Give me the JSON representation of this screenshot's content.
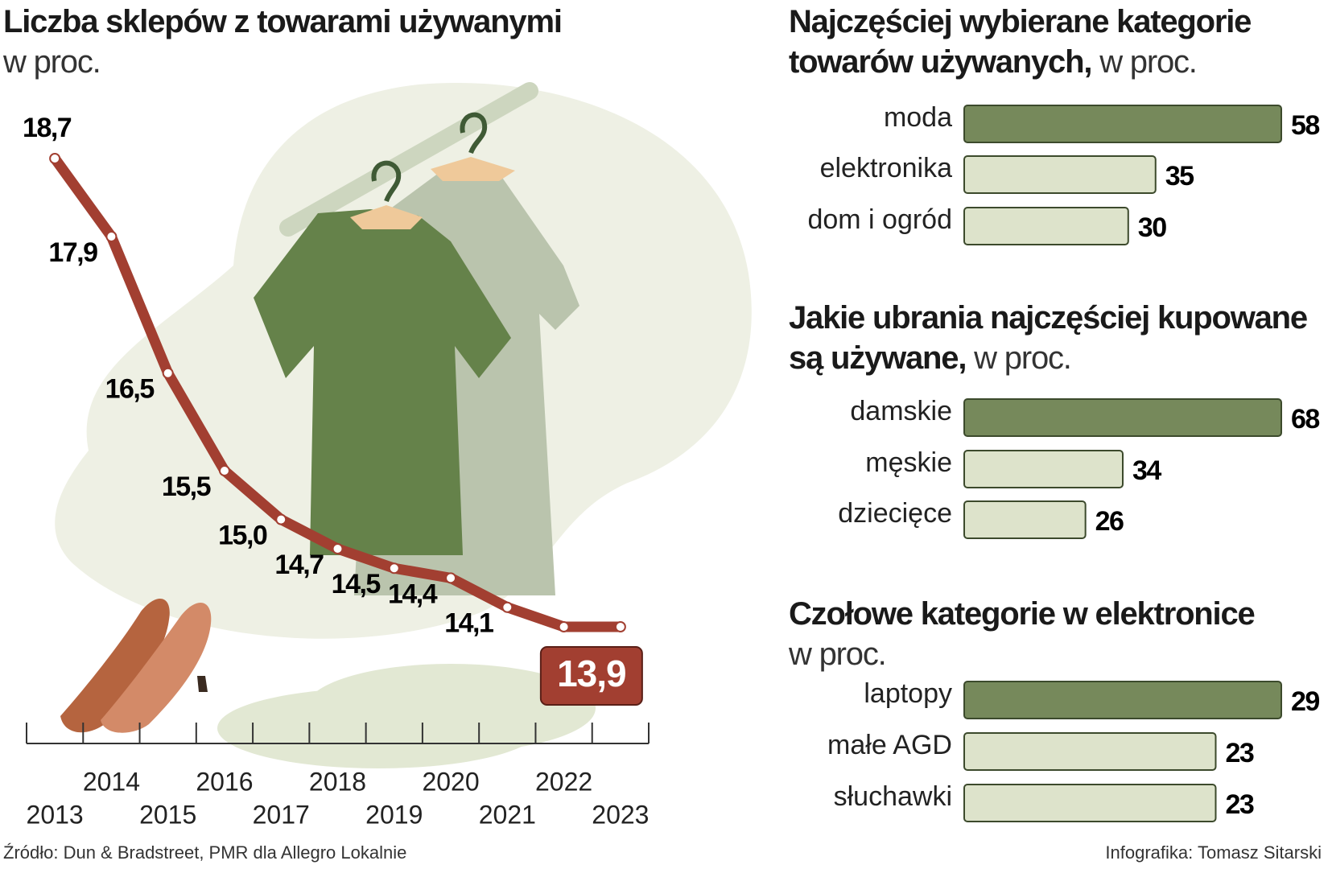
{
  "chart_data": [
    {
      "type": "line",
      "title": "Liczba sklepów z towarami używanymi",
      "subtitle": "w proc.",
      "x": [
        2013,
        2014,
        2015,
        2016,
        2017,
        2018,
        2019,
        2020,
        2021,
        2022,
        2023
      ],
      "values": [
        18.7,
        17.9,
        16.5,
        15.5,
        15.0,
        14.7,
        14.5,
        14.4,
        14.1,
        13.9,
        13.9
      ],
      "value_labels": [
        "18,7",
        "17,9",
        "16,5",
        "15,5",
        "15,0",
        "14,7",
        "14,5",
        "14,4",
        "14,1",
        null,
        "13,9"
      ],
      "xlim": [
        2012.5,
        2023.5
      ],
      "xticks": [
        2013,
        2014,
        2015,
        2016,
        2017,
        2018,
        2019,
        2020,
        2021,
        2022,
        2023
      ],
      "color": "#a23f31"
    },
    {
      "type": "hbar",
      "title": "Najczęściej wybierane kategorie towarów używanych,",
      "subtitle": "w proc.",
      "categories": [
        "moda",
        "elektronika",
        "dom i ogród"
      ],
      "values": [
        58,
        35,
        30
      ],
      "colors": [
        "#76895b",
        "#dde3cb",
        "#dde3cb"
      ]
    },
    {
      "type": "hbar",
      "title": "Jakie ubrania najczęściej kupowane są używane,",
      "subtitle": "w proc.",
      "categories": [
        "damskie",
        "męskie",
        "dziecięce"
      ],
      "values": [
        68,
        34,
        26
      ],
      "colors": [
        "#76895b",
        "#dde3cb",
        "#dde3cb"
      ]
    },
    {
      "type": "hbar",
      "title": "Czołowe kategorie w elektronice",
      "subtitle": "w proc.",
      "categories": [
        "laptopy",
        "małe AGD",
        "słuchawki"
      ],
      "values": [
        29,
        23,
        23
      ],
      "colors": [
        "#76895b",
        "#dde3cb",
        "#dde3cb"
      ]
    }
  ],
  "source": "Źródło: Dun & Bradstreet, PMR dla Allegro Lokalnie",
  "credit": "Infografika: Tomasz Sitarski"
}
